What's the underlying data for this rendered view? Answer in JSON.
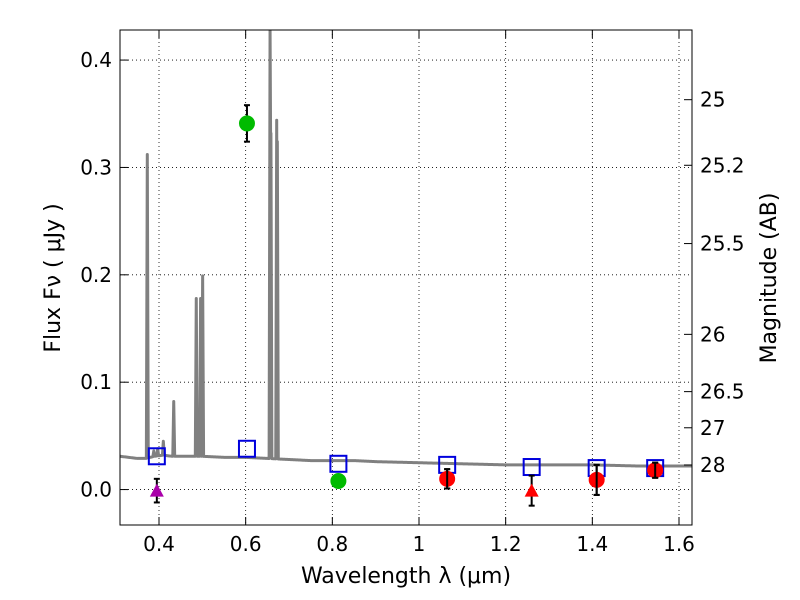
{
  "chart_data": {
    "type": "scatter",
    "xlabel": "Wavelength  λ (μm)",
    "ylabel": "Flux  Fν  ( μJy )",
    "y2label": "Magnitude (AB)",
    "xlim": [
      0.31,
      1.63
    ],
    "ylim": [
      -0.033,
      0.428
    ],
    "grid": true,
    "x_ticks": [
      0.4,
      0.6,
      0.8,
      1.0,
      1.2,
      1.4,
      1.6
    ],
    "x_tick_labels": [
      "0.4",
      "0.6",
      "0.8",
      "1",
      "1.2",
      "1.4",
      "1.6"
    ],
    "y_ticks": [
      0.0,
      0.1,
      0.2,
      0.3,
      0.4
    ],
    "y_tick_labels": [
      "0.0",
      "0.1",
      "0.2",
      "0.3",
      "0.4"
    ],
    "mag_ticks": [
      25,
      25.2,
      25.5,
      26,
      26.5,
      27,
      28
    ],
    "mag_tick_labels": [
      "25",
      "25.2",
      "25.5",
      "26",
      "26.5",
      "27",
      "28"
    ],
    "colors": {
      "spectrum": "#808080",
      "model": "#0000dd",
      "green": "#00bb00",
      "red": "#ff0000",
      "purple": "#aa00aa",
      "errorbar": "#000000"
    },
    "spectrum_continuum": [
      [
        0.31,
        0.031
      ],
      [
        0.33,
        0.03
      ],
      [
        0.35,
        0.029
      ],
      [
        0.37,
        0.029
      ],
      [
        0.39,
        0.031
      ],
      [
        0.41,
        0.032
      ],
      [
        0.43,
        0.031
      ],
      [
        0.46,
        0.031
      ],
      [
        0.5,
        0.031
      ],
      [
        0.55,
        0.03
      ],
      [
        0.6,
        0.03
      ],
      [
        0.65,
        0.029
      ],
      [
        0.7,
        0.028
      ],
      [
        0.75,
        0.027
      ],
      [
        0.8,
        0.027
      ],
      [
        0.85,
        0.027
      ],
      [
        0.9,
        0.026
      ],
      [
        1.0,
        0.025
      ],
      [
        1.1,
        0.024
      ],
      [
        1.2,
        0.023
      ],
      [
        1.3,
        0.023
      ],
      [
        1.4,
        0.023
      ],
      [
        1.5,
        0.022
      ],
      [
        1.63,
        0.022
      ]
    ],
    "emission_lines": [
      {
        "x": 0.373,
        "peak": 0.312
      },
      {
        "x": 0.388,
        "peak": 0.036
      },
      {
        "x": 0.397,
        "peak": 0.038
      },
      {
        "x": 0.41,
        "peak": 0.045
      },
      {
        "x": 0.434,
        "peak": 0.082
      },
      {
        "x": 0.486,
        "peak": 0.178
      },
      {
        "x": 0.496,
        "peak": 0.178
      },
      {
        "x": 0.5007,
        "peak": 0.199
      },
      {
        "x": 0.6563,
        "peak": 0.43
      },
      {
        "x": 0.6583,
        "peak": 0.332
      },
      {
        "x": 0.6716,
        "peak": 0.344
      },
      {
        "x": 0.6731,
        "peak": 0.324
      }
    ],
    "model_photometry": [
      {
        "x": 0.395,
        "y": 0.031
      },
      {
        "x": 0.603,
        "y": 0.038
      },
      {
        "x": 0.814,
        "y": 0.024
      },
      {
        "x": 1.065,
        "y": 0.023
      },
      {
        "x": 1.26,
        "y": 0.021
      },
      {
        "x": 1.41,
        "y": 0.02
      },
      {
        "x": 1.545,
        "y": 0.02
      }
    ],
    "observed_green": [
      {
        "x": 0.603,
        "y": 0.341,
        "yerr": 0.017
      },
      {
        "x": 0.814,
        "y": 0.008,
        "yerr": 0.005
      }
    ],
    "observed_red": [
      {
        "x": 1.065,
        "y": 0.01,
        "yerr": 0.009
      },
      {
        "x": 1.41,
        "y": 0.009,
        "yerr": 0.014
      },
      {
        "x": 1.545,
        "y": 0.018,
        "yerr": 0.007
      }
    ],
    "upper_limits": [
      {
        "x": 0.395,
        "y": -0.001,
        "yerr": 0.011,
        "color": "purple"
      },
      {
        "x": 1.26,
        "y": -0.001,
        "yerr": 0.014,
        "color": "red"
      }
    ]
  }
}
